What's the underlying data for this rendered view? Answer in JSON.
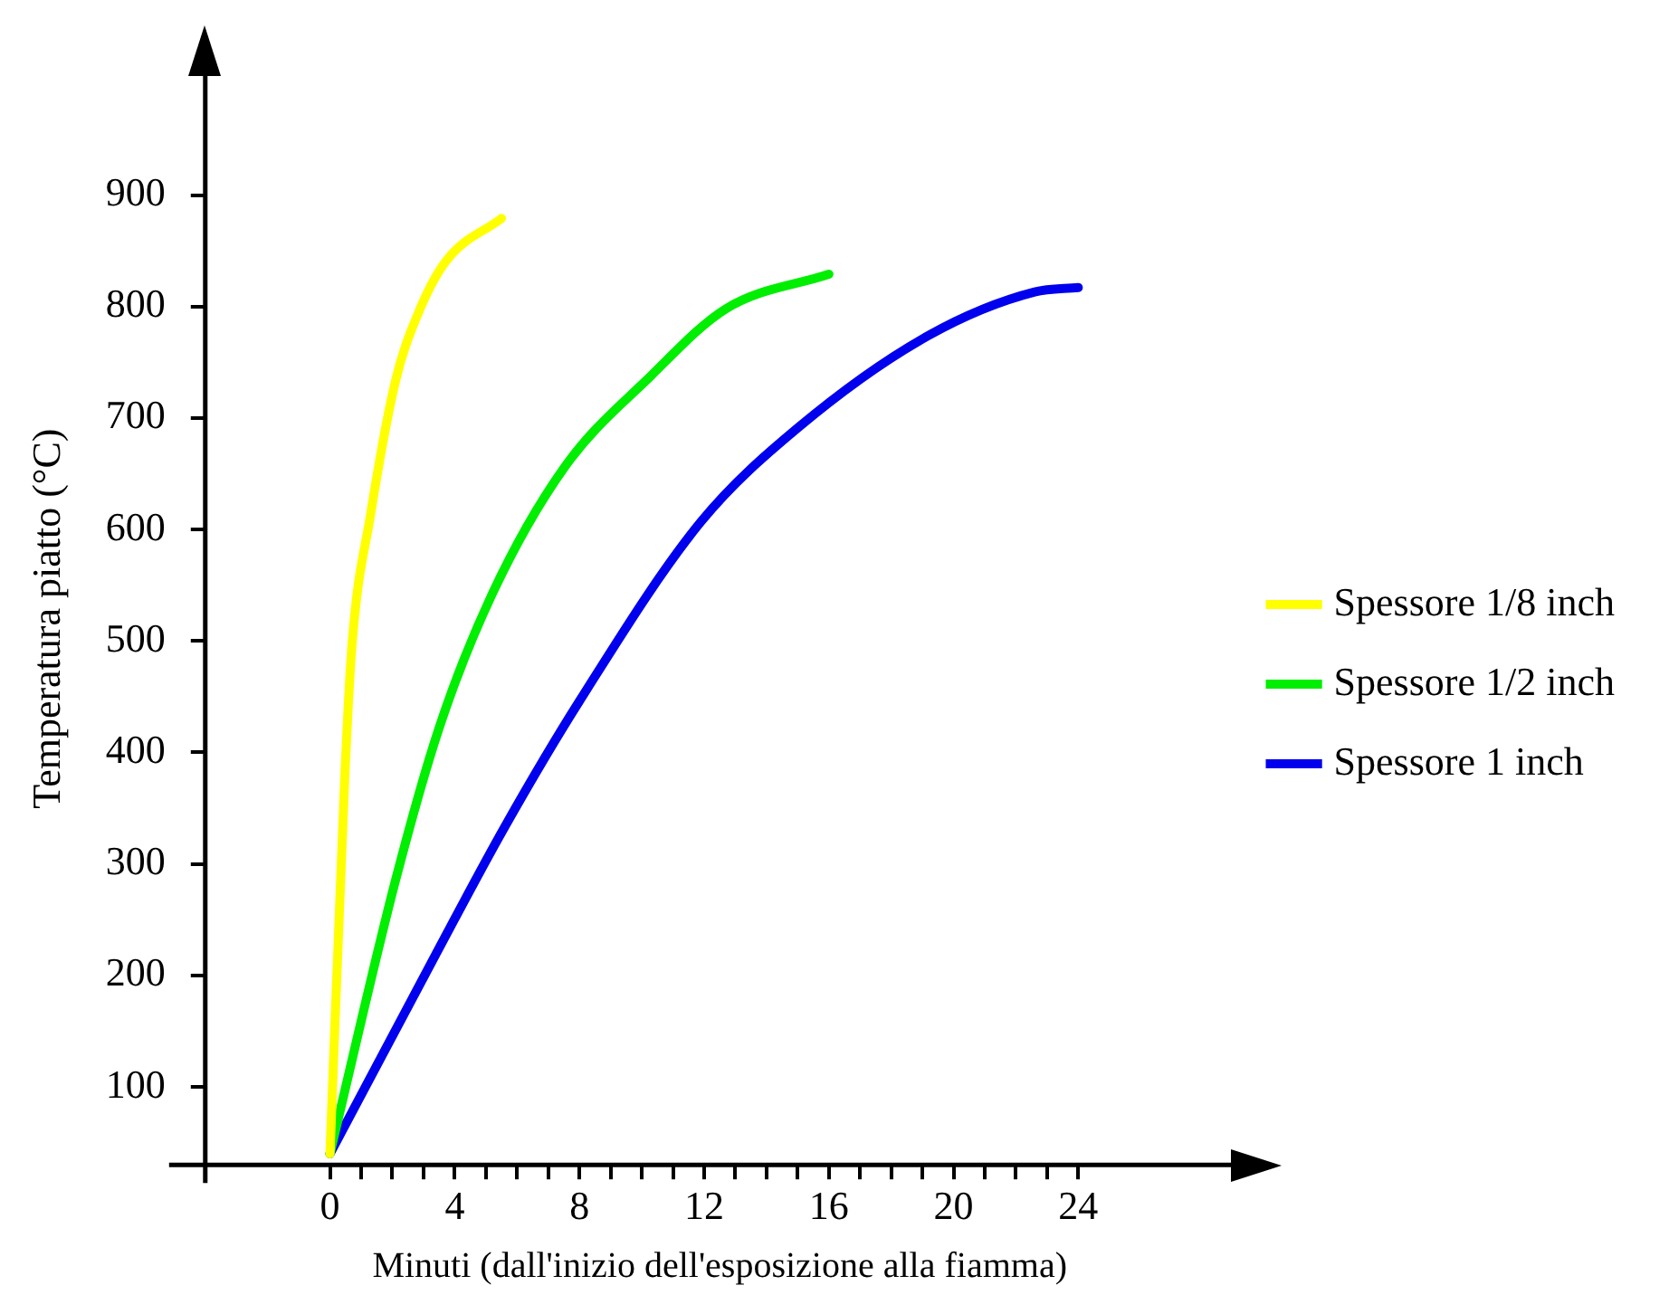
{
  "chart_data": {
    "type": "line",
    "xlabel": "Minuti (dall'inizio dell'esposizione alla fiamma)",
    "ylabel": "Temperatura piatto (°C)",
    "xlim": [
      -4,
      29
    ],
    "ylim": [
      30,
      1010
    ],
    "xticks": [
      0,
      {
        "value": 1,
        "label": null
      },
      {
        "value": 2,
        "label": null
      },
      {
        "value": 3,
        "label": null
      },
      4,
      {
        "value": 5,
        "label": null
      },
      {
        "value": 6,
        "label": null
      },
      {
        "value": 7,
        "label": null
      },
      8,
      {
        "value": 9,
        "label": null
      },
      {
        "value": 10,
        "label": null
      },
      {
        "value": 11,
        "label": null
      },
      12,
      {
        "value": 13,
        "label": null
      },
      {
        "value": 14,
        "label": null
      },
      {
        "value": 15,
        "label": null
      },
      16,
      {
        "value": 17,
        "label": null
      },
      {
        "value": 18,
        "label": null
      },
      {
        "value": 19,
        "label": null
      },
      20,
      {
        "value": 21,
        "label": null
      },
      {
        "value": 22,
        "label": null
      },
      {
        "value": 23,
        "label": null
      },
      24
    ],
    "yticks": [
      100,
      200,
      300,
      400,
      500,
      600,
      700,
      800,
      900
    ],
    "grid": false,
    "legend": "right",
    "marker": "none",
    "line_style": "solid",
    "series": [
      {
        "name": "Spessore 1/8 inch",
        "color": "#ffff00",
        "x": [
          0,
          0.47,
          0.7,
          1.3,
          2.1,
          2.8,
          3.7,
          5.5
        ],
        "values": [
          40,
          375,
          494,
          613,
          733,
          792,
          840,
          879
        ]
      },
      {
        "name": "Spessore 1/2 inch",
        "color": "#00ee00",
        "x": [
          0,
          2.1,
          3.5,
          5.2,
          7.5,
          10.3,
          12.7,
          16
        ],
        "values": [
          40,
          285,
          422,
          542,
          655,
          738,
          798,
          829
        ]
      },
      {
        "name": "Spessore 1 inch",
        "color": "#0000ee",
        "x": [
          0,
          3.3,
          5.6,
          8,
          11.9,
          15,
          19.2,
          22.6,
          24
        ],
        "values": [
          40,
          214,
          333,
          446,
          607,
          691,
          774,
          813,
          817
        ]
      }
    ]
  }
}
